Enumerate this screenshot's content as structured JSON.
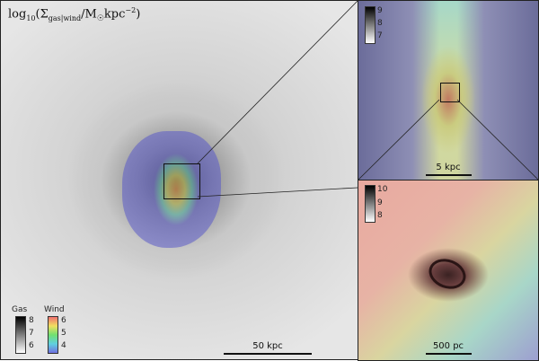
{
  "main": {
    "title": "log10(Σgas|wind/M☉kpc⁻²)",
    "title_base": "log",
    "title_sub10": "10",
    "title_mid": "(Σ",
    "title_sub": "gas|wind",
    "title_tail": "/M",
    "title_sun": "☉",
    "title_end": "kpc",
    "title_exp": "−2",
    ")": ")",
    "scale_label": "50 kpc",
    "legend": {
      "gas": {
        "label": "Gas",
        "ticks": [
          "8",
          "7",
          "6"
        ]
      },
      "wind": {
        "label": "Wind",
        "ticks": [
          "6",
          "5",
          "4"
        ]
      }
    }
  },
  "zoom1": {
    "scale_label": "5 kpc",
    "ticks": [
      "9",
      "8",
      "7"
    ]
  },
  "zoom2": {
    "scale_label": "500 pc",
    "ticks": [
      "10",
      "9",
      "8"
    ]
  }
}
